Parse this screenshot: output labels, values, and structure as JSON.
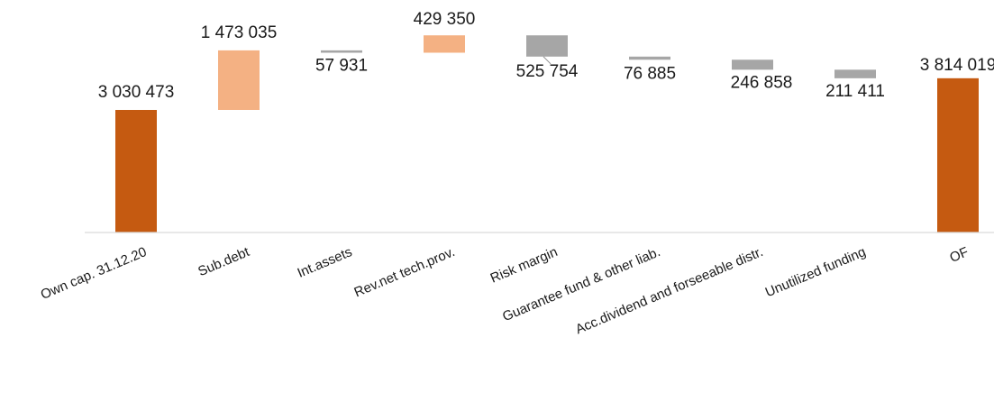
{
  "chart_data": {
    "type": "waterfall",
    "title": "",
    "xlabel": "",
    "ylabel": "",
    "grid": false,
    "legend": "none",
    "categories": [
      "Own cap. 31.12.20",
      "Sub.debt",
      "Int.assets",
      "Rev.net tech.prov.",
      "Risk margin",
      "Guarantee fund & other liab.",
      "Acc.dividend and forseeable distr.",
      "Unutilized funding",
      "OF"
    ],
    "bars": [
      {
        "kind": "total",
        "start": 0,
        "end": 3030473,
        "label": "3 030 473"
      },
      {
        "kind": "increase",
        "start": 3030473,
        "end": 4503508,
        "label": "1 473 035"
      },
      {
        "kind": "decrease",
        "start": 4503508,
        "end": 4445577,
        "label": "57 931"
      },
      {
        "kind": "increase",
        "start": 4445577,
        "end": 4874927,
        "label": "429 350"
      },
      {
        "kind": "decrease",
        "start": 4874927,
        "end": 4349173,
        "label": "525 754"
      },
      {
        "kind": "decrease",
        "start": 4349173,
        "end": 4272288,
        "label": "76 885"
      },
      {
        "kind": "decrease",
        "start": 4272288,
        "end": 4025430,
        "label": "246 858"
      },
      {
        "kind": "decrease",
        "start": 4025430,
        "end": 3814019,
        "label": "211 411"
      },
      {
        "kind": "total",
        "start": 0,
        "end": 3814019,
        "label": "3 814 019"
      }
    ],
    "colors": {
      "total": "#c55a11",
      "increase": "#f4b183",
      "decrease": "#a6a6a6",
      "axis": "#d9d9d9"
    }
  }
}
